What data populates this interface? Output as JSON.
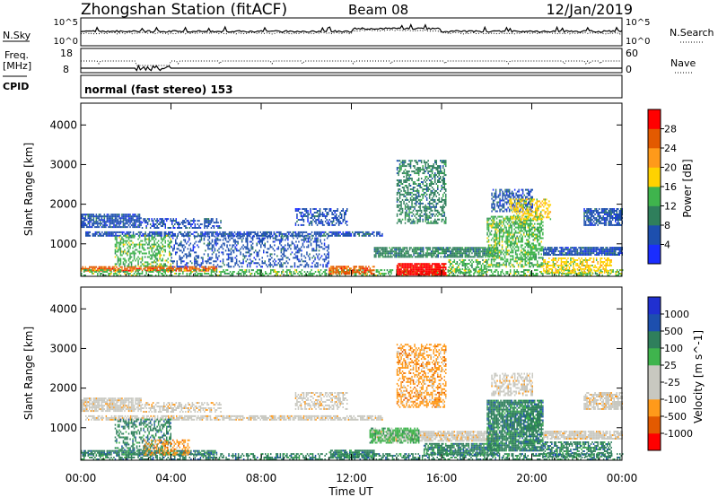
{
  "header": {
    "title": "Zhongshan Station (fitACF)",
    "beam": "Beam 08",
    "date": "12/Jan/2019",
    "mode": "normal (fast stereo) 153"
  },
  "strip_labels": {
    "nsky": "N.Sky",
    "nsearch": "N.Search",
    "freq_line1": "Freq.",
    "freq_line2": "[MHz]",
    "nave": "Nave",
    "cpid": "CPID"
  },
  "strip_ticks": {
    "noise_left_top": "10^5",
    "noise_left_bottom": "10^0",
    "noise_right_top": "10^5",
    "noise_right_bottom": "10^0",
    "freq_top": "18",
    "freq_bottom": "8",
    "nave_top": "60",
    "nave_bottom": "0"
  },
  "colors": {
    "power": [
      "#1a2dff",
      "#1d4fae",
      "#2f7f5c",
      "#3fb44d",
      "#ffd200",
      "#ff9a1a",
      "#e35a00",
      "#ff0000"
    ],
    "velocity": [
      "#ff0000",
      "#e35a00",
      "#ff9a1a",
      "#c8c8c0",
      "#c8c8c0",
      "#3fb44d",
      "#2f7f5c",
      "#1d4fae",
      "#2030d0"
    ]
  },
  "chart_data": [
    {
      "type": "heatmap",
      "title": "",
      "xlabel": "Time UT",
      "ylabel": "Slant Range [km]",
      "xlim": [
        0,
        24
      ],
      "ylim": [
        180,
        4550
      ],
      "x_ticks": [
        "00:00",
        "04:00",
        "08:00",
        "12:00",
        "16:00",
        "20:00",
        "00:00"
      ],
      "y_ticks": [
        "1000",
        "2000",
        "3000",
        "4000"
      ],
      "colorbar": {
        "label": "Power [dB]",
        "ticks": [
          "4",
          "8",
          "12",
          "16",
          "20",
          "24",
          "28"
        ],
        "range": [
          0,
          32
        ]
      },
      "regions": [
        {
          "t0": 0.0,
          "t1": 2.7,
          "r0": 1400,
          "r1": 1750,
          "level": 1,
          "density": 0.8
        },
        {
          "t0": 2.7,
          "t1": 6.2,
          "r0": 1380,
          "r1": 1620,
          "level": 1,
          "density": 0.5
        },
        {
          "t0": 0.2,
          "t1": 13.4,
          "r0": 1180,
          "r1": 1300,
          "level": 1,
          "density": 0.75
        },
        {
          "t0": 0.0,
          "t1": 6.0,
          "r0": 300,
          "r1": 420,
          "level": 6,
          "density": 0.85
        },
        {
          "t0": 0.0,
          "t1": 24.0,
          "r0": 180,
          "r1": 320,
          "level": 3,
          "density": 0.5
        },
        {
          "t0": 1.5,
          "t1": 4.0,
          "r0": 420,
          "r1": 1200,
          "level": 3,
          "density": 0.45
        },
        {
          "t0": 4.0,
          "t1": 11.0,
          "r0": 400,
          "r1": 1200,
          "level": 1,
          "density": 0.35
        },
        {
          "t0": 9.5,
          "t1": 11.8,
          "r0": 1450,
          "r1": 1900,
          "level": 1,
          "density": 0.5
        },
        {
          "t0": 11.0,
          "t1": 13.0,
          "r0": 220,
          "r1": 420,
          "level": 6,
          "density": 0.75
        },
        {
          "t0": 13.0,
          "t1": 18.5,
          "r0": 650,
          "r1": 900,
          "level": 2,
          "density": 0.8
        },
        {
          "t0": 14.0,
          "t1": 16.2,
          "r0": 200,
          "r1": 500,
          "level": 7,
          "density": 0.9
        },
        {
          "t0": 14.0,
          "t1": 16.2,
          "r0": 1500,
          "r1": 3100,
          "level": 2,
          "density": 0.5
        },
        {
          "t0": 16.3,
          "t1": 18.0,
          "r0": 250,
          "r1": 600,
          "level": 3,
          "density": 0.5
        },
        {
          "t0": 18.0,
          "t1": 20.5,
          "r0": 400,
          "r1": 1700,
          "level": 3,
          "density": 0.6
        },
        {
          "t0": 18.2,
          "t1": 20.0,
          "r0": 1800,
          "r1": 2350,
          "level": 1,
          "density": 0.55
        },
        {
          "t0": 19.0,
          "t1": 20.8,
          "r0": 1600,
          "r1": 2100,
          "level": 4,
          "density": 0.5
        },
        {
          "t0": 20.5,
          "t1": 24.0,
          "r0": 700,
          "r1": 900,
          "level": 1,
          "density": 0.85
        },
        {
          "t0": 20.5,
          "t1": 23.5,
          "r0": 250,
          "r1": 650,
          "level": 4,
          "density": 0.6
        },
        {
          "t0": 22.3,
          "t1": 24.0,
          "r0": 1450,
          "r1": 1900,
          "level": 1,
          "density": 0.75
        }
      ]
    },
    {
      "type": "heatmap",
      "title": "",
      "xlabel": "Time UT",
      "ylabel": "Slant Range [km]",
      "xlim": [
        0,
        24
      ],
      "ylim": [
        180,
        4550
      ],
      "x_ticks": [
        "00:00",
        "04:00",
        "08:00",
        "12:00",
        "16:00",
        "20:00",
        "00:00"
      ],
      "y_ticks": [
        "1000",
        "2000",
        "3000",
        "4000"
      ],
      "colorbar": {
        "label": "Velocity [m s^-1]",
        "ticks": [
          "1000",
          "500",
          "100",
          "25",
          "-25",
          "-100",
          "-500",
          "-1000"
        ],
        "range": [
          -1250,
          1250
        ]
      },
      "regions": [
        {
          "t0": 0.0,
          "t1": 2.7,
          "r0": 1400,
          "r1": 1750,
          "level": 3,
          "density": 0.8
        },
        {
          "t0": 2.7,
          "t1": 6.2,
          "r0": 1380,
          "r1": 1620,
          "level": 3,
          "density": 0.5
        },
        {
          "t0": 0.2,
          "t1": 13.4,
          "r0": 1180,
          "r1": 1300,
          "level": 3,
          "density": 0.75
        },
        {
          "t0": 0.0,
          "t1": 6.0,
          "r0": 300,
          "r1": 420,
          "level": 6,
          "density": 0.85
        },
        {
          "t0": 0.0,
          "t1": 24.0,
          "r0": 180,
          "r1": 320,
          "level": 6,
          "density": 0.5
        },
        {
          "t0": 1.5,
          "t1": 4.0,
          "r0": 420,
          "r1": 1200,
          "level": 6,
          "density": 0.45
        },
        {
          "t0": 2.8,
          "t1": 4.8,
          "r0": 300,
          "r1": 700,
          "level": 2,
          "density": 0.45
        },
        {
          "t0": 9.5,
          "t1": 11.8,
          "r0": 1450,
          "r1": 1900,
          "level": 3,
          "density": 0.5
        },
        {
          "t0": 11.0,
          "t1": 13.0,
          "r0": 220,
          "r1": 420,
          "level": 6,
          "density": 0.75
        },
        {
          "t0": 13.0,
          "t1": 18.5,
          "r0": 650,
          "r1": 900,
          "level": 3,
          "density": 0.8
        },
        {
          "t0": 12.8,
          "t1": 15.0,
          "r0": 600,
          "r1": 1000,
          "level": 5,
          "density": 0.7
        },
        {
          "t0": 14.0,
          "t1": 16.2,
          "r0": 1500,
          "r1": 3100,
          "level": 2,
          "density": 0.5
        },
        {
          "t0": 15.2,
          "t1": 18.5,
          "r0": 300,
          "r1": 600,
          "level": 6,
          "density": 0.8
        },
        {
          "t0": 18.0,
          "t1": 20.5,
          "r0": 400,
          "r1": 1700,
          "level": 6,
          "density": 0.85
        },
        {
          "t0": 18.2,
          "t1": 20.0,
          "r0": 1800,
          "r1": 2350,
          "level": 3,
          "density": 0.55
        },
        {
          "t0": 20.5,
          "t1": 24.0,
          "r0": 700,
          "r1": 900,
          "level": 3,
          "density": 0.85
        },
        {
          "t0": 20.5,
          "t1": 23.5,
          "r0": 250,
          "r1": 650,
          "level": 6,
          "density": 0.6
        },
        {
          "t0": 22.3,
          "t1": 24.0,
          "r0": 1450,
          "r1": 1900,
          "level": 3,
          "density": 0.75
        }
      ]
    }
  ]
}
